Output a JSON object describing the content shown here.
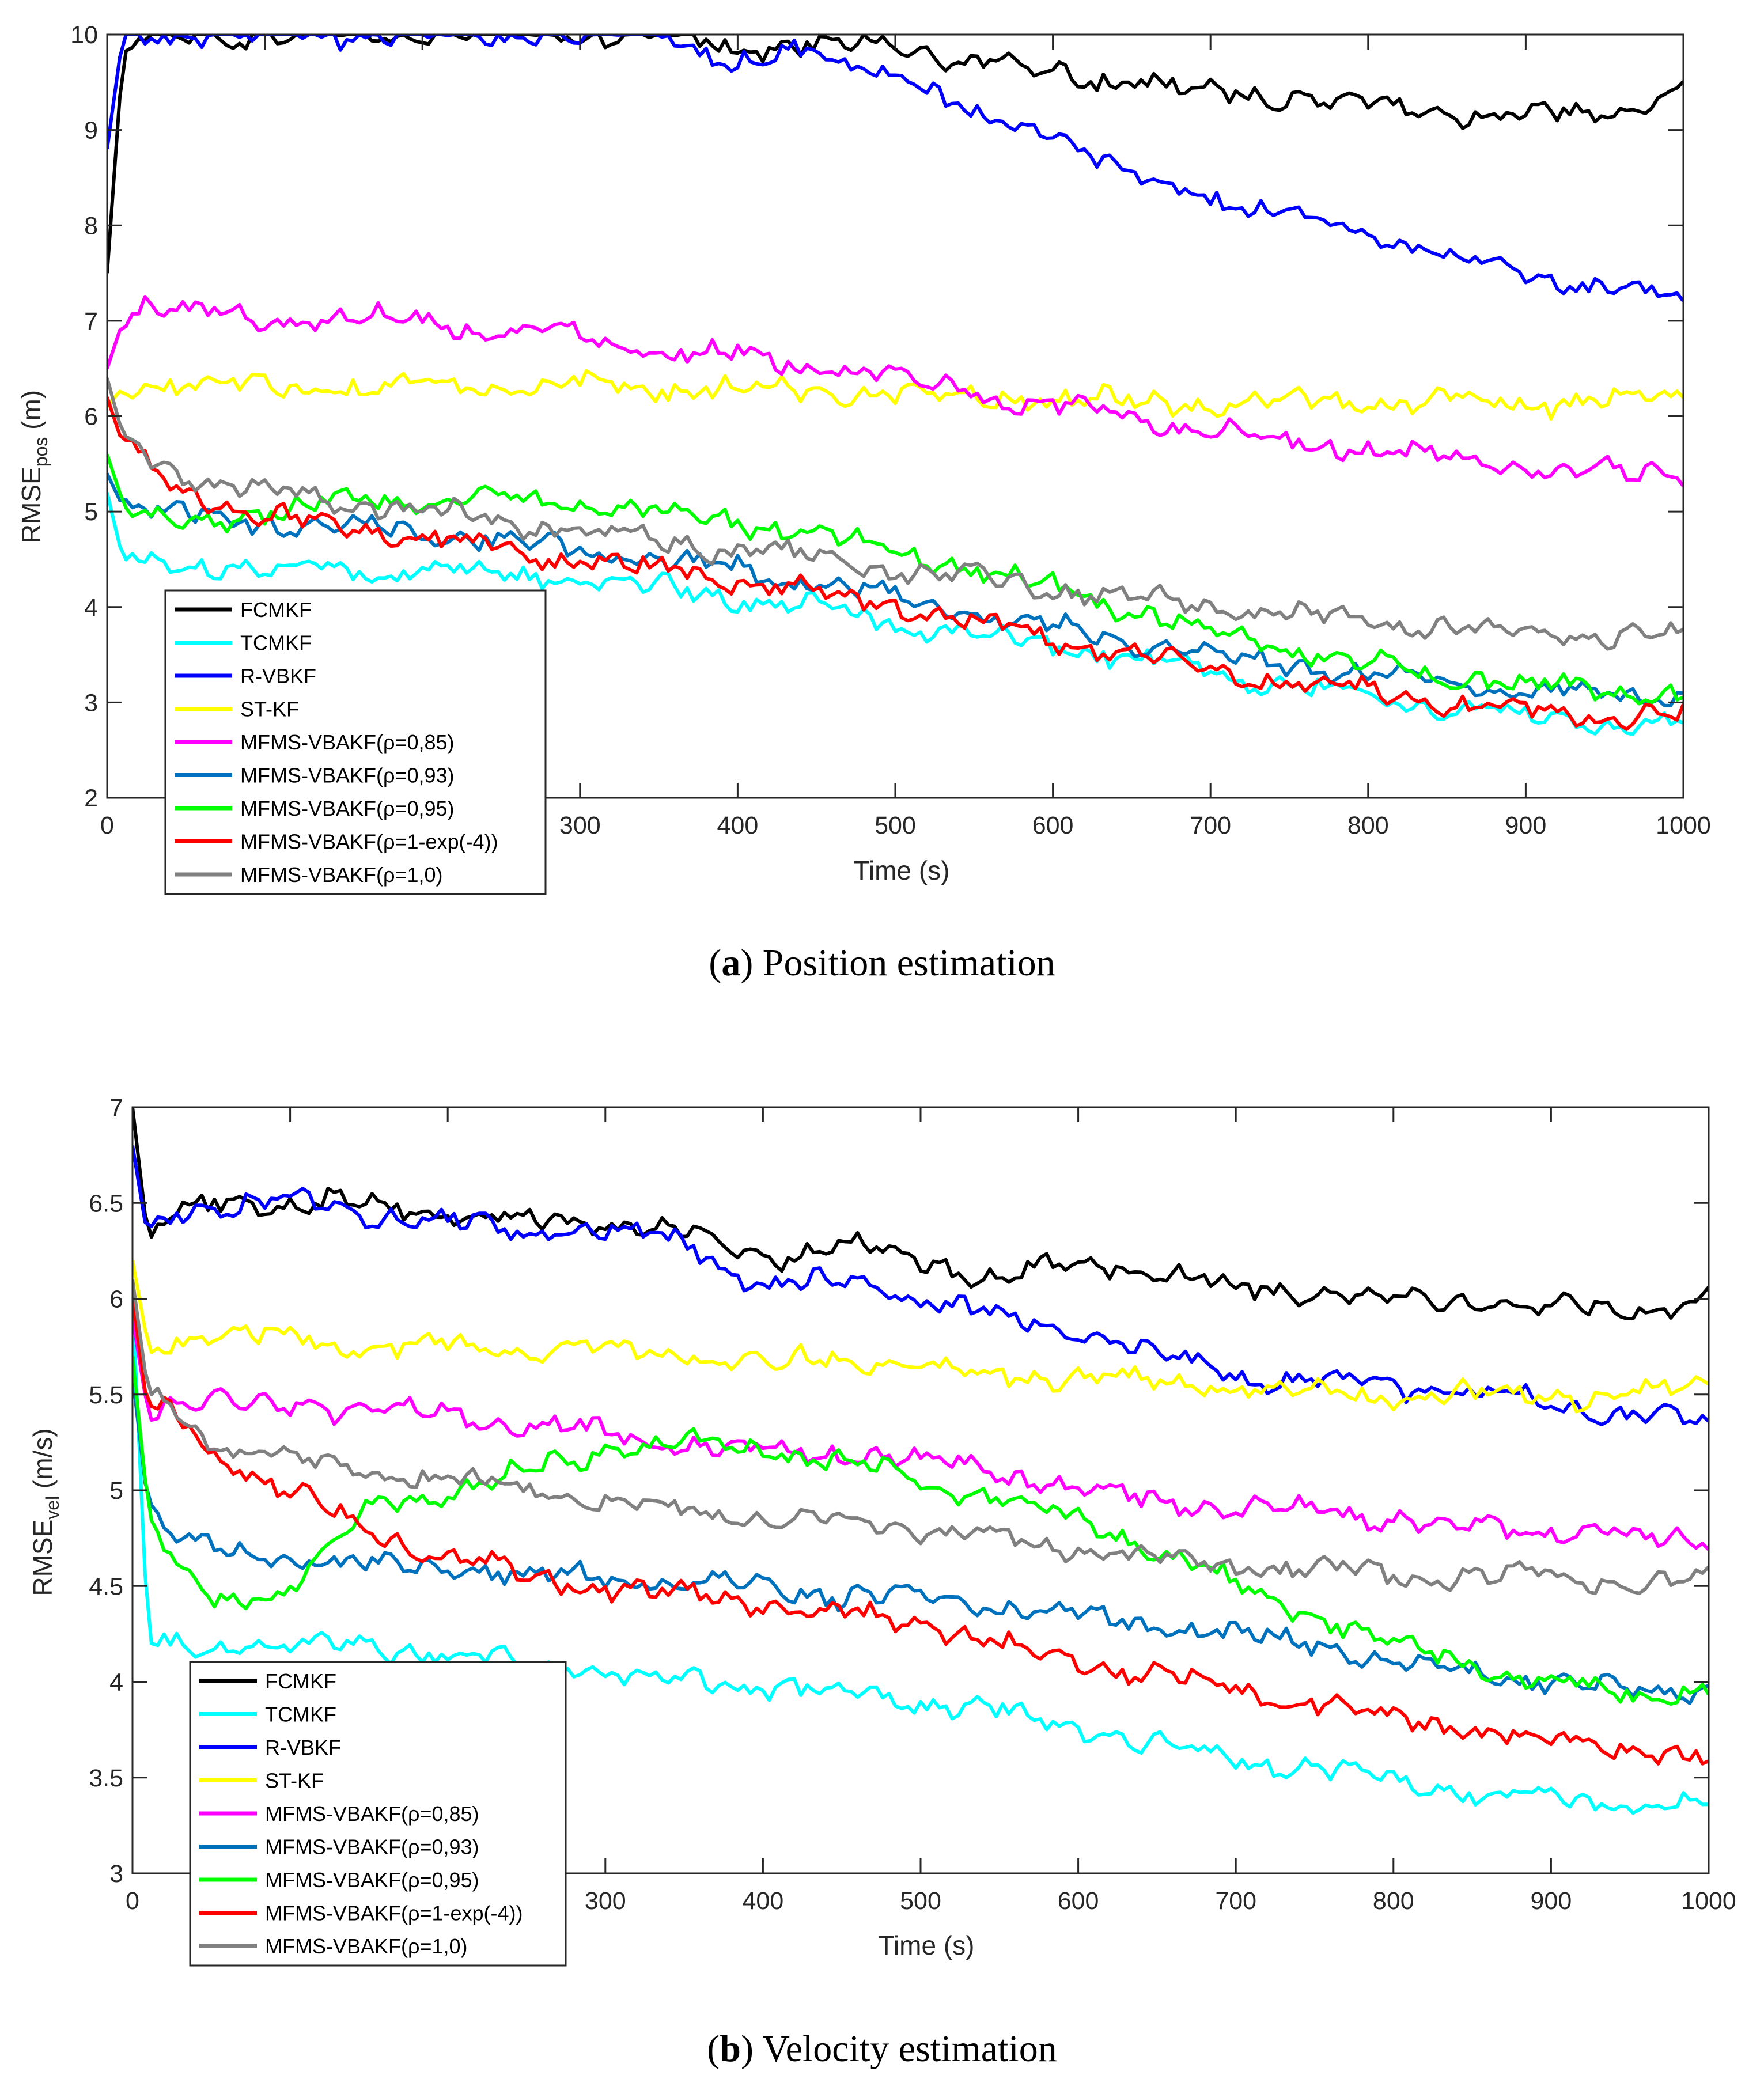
{
  "figure": {
    "panels": [
      {
        "caption_label": "a",
        "caption_text": "Position estimation",
        "ylabel_main": "RMSE",
        "ylabel_sub": "pos",
        "ylabel_unit": " (m)",
        "xlabel": "Time (s)"
      },
      {
        "caption_label": "b",
        "caption_text": "Velocity estimation",
        "ylabel_main": "RMSE",
        "ylabel_sub": "vel",
        "ylabel_unit": " (m/s)",
        "xlabel": "Time (s)"
      }
    ]
  },
  "chart_data": [
    {
      "type": "line",
      "title": "(a) Position estimation",
      "xlabel": "Time (s)",
      "ylabel": "RMSE_pos (m)",
      "xlim": [
        0,
        1000
      ],
      "ylim": [
        2,
        10
      ],
      "xticks": [
        "0",
        "100",
        "200",
        "300",
        "400",
        "500",
        "600",
        "700",
        "800",
        "900",
        "1000"
      ],
      "yticks": [
        "2",
        "3",
        "4",
        "5",
        "6",
        "7",
        "8",
        "9",
        "10"
      ],
      "x": [
        0,
        10,
        25,
        50,
        100,
        150,
        200,
        250,
        300,
        350,
        400,
        450,
        500,
        550,
        600,
        650,
        700,
        750,
        800,
        850,
        900,
        950,
        1000
      ],
      "legend_position": "bottom-left",
      "series": [
        {
          "name": "FCMKF",
          "color": "#000000",
          "values": [
            7.5,
            9.8,
            10.0,
            10.0,
            10.0,
            10.0,
            10.0,
            10.0,
            10.0,
            10.0,
            9.85,
            9.9,
            9.9,
            9.7,
            9.6,
            9.5,
            9.4,
            9.35,
            9.25,
            9.2,
            9.15,
            9.15,
            9.4
          ]
        },
        {
          "name": "TCMKF",
          "color": "#00ffff",
          "values": [
            5.2,
            4.5,
            4.45,
            4.45,
            4.4,
            4.4,
            4.38,
            4.35,
            4.3,
            4.2,
            4.1,
            3.98,
            3.85,
            3.7,
            3.58,
            3.45,
            3.3,
            3.18,
            3.05,
            2.95,
            2.85,
            2.8,
            2.78
          ]
        },
        {
          "name": "R-VBKF",
          "color": "#0000ff",
          "values": [
            8.8,
            10.0,
            10.0,
            10.0,
            10.0,
            10.0,
            10.0,
            10.0,
            10.0,
            10.0,
            9.7,
            9.8,
            9.6,
            9.1,
            9.0,
            8.5,
            8.3,
            8.1,
            7.9,
            7.7,
            7.45,
            7.35,
            7.2
          ]
        },
        {
          "name": "ST-KF",
          "color": "#ffff00",
          "values": [
            6.1,
            6.3,
            6.35,
            6.35,
            6.3,
            6.3,
            6.3,
            6.3,
            6.3,
            6.3,
            6.3,
            6.25,
            6.25,
            6.2,
            6.2,
            6.15,
            6.15,
            6.15,
            6.15,
            6.15,
            6.15,
            6.15,
            6.2
          ]
        },
        {
          "name": "MFMS-VBAKF(ρ=0,85)",
          "color": "#ff00ff",
          "values": [
            6.5,
            7.0,
            7.2,
            7.1,
            7.0,
            7.05,
            7.0,
            6.9,
            6.85,
            6.7,
            6.65,
            6.5,
            6.4,
            6.25,
            6.1,
            6.0,
            5.85,
            5.75,
            5.65,
            5.55,
            5.45,
            5.4,
            5.4
          ]
        },
        {
          "name": "MFMS-VBAKF(ρ=0,93)",
          "color": "#0072bd",
          "values": [
            5.4,
            5.05,
            5.0,
            4.95,
            4.9,
            4.85,
            4.8,
            4.7,
            4.6,
            4.5,
            4.4,
            4.25,
            4.1,
            3.95,
            3.8,
            3.65,
            3.5,
            3.4,
            3.3,
            3.2,
            3.12,
            3.08,
            3.05
          ]
        },
        {
          "name": "MFMS-VBAKF(ρ=0,95)",
          "color": "#00ff00",
          "values": [
            5.6,
            5.1,
            4.9,
            4.9,
            5.0,
            5.1,
            5.15,
            5.1,
            5.05,
            5.0,
            4.9,
            4.75,
            4.6,
            4.4,
            4.2,
            3.95,
            3.75,
            3.55,
            3.4,
            3.28,
            3.18,
            3.12,
            3.1
          ]
        },
        {
          "name": "MFMS-VBAKF(ρ=1-exp(-4))",
          "color": "#ff0000",
          "values": [
            6.2,
            5.7,
            5.5,
            5.2,
            4.95,
            4.85,
            4.75,
            4.6,
            4.5,
            4.4,
            4.3,
            4.15,
            4.0,
            3.85,
            3.65,
            3.5,
            3.35,
            3.2,
            3.1,
            3.0,
            2.92,
            2.88,
            2.87
          ]
        },
        {
          "name": "MFMS-VBAKF(ρ=1,0)",
          "color": "#808080",
          "values": [
            6.4,
            5.8,
            5.6,
            5.35,
            5.2,
            5.1,
            5.0,
            4.9,
            4.8,
            4.7,
            4.6,
            4.5,
            4.4,
            4.3,
            4.2,
            4.1,
            4.0,
            3.9,
            3.85,
            3.8,
            3.75,
            3.7,
            3.68
          ]
        }
      ]
    },
    {
      "type": "line",
      "title": "(b) Velocity estimation",
      "xlabel": "Time (s)",
      "ylabel": "RMSE_vel (m/s)",
      "xlim": [
        0,
        1000
      ],
      "ylim": [
        3,
        7
      ],
      "xticks": [
        "0",
        "100",
        "200",
        "300",
        "400",
        "500",
        "600",
        "700",
        "800",
        "900",
        "1000"
      ],
      "yticks": [
        "3",
        "3.5",
        "4",
        "4.5",
        "5",
        "5.5",
        "6",
        "6.5",
        "7"
      ],
      "x": [
        0,
        10,
        25,
        50,
        100,
        150,
        200,
        250,
        300,
        350,
        400,
        450,
        500,
        550,
        600,
        650,
        700,
        750,
        800,
        850,
        900,
        950,
        1000
      ],
      "legend_position": "bottom-left",
      "series": [
        {
          "name": "FCMKF",
          "color": "#000000",
          "values": [
            7.0,
            6.3,
            6.45,
            6.5,
            6.5,
            6.5,
            6.45,
            6.4,
            6.4,
            6.35,
            6.2,
            6.3,
            6.2,
            6.1,
            6.2,
            6.15,
            6.05,
            6.05,
            6.0,
            6.0,
            5.95,
            5.95,
            6.0
          ]
        },
        {
          "name": "TCMKF",
          "color": "#00ffff",
          "values": [
            6.0,
            4.2,
            4.18,
            4.2,
            4.2,
            4.18,
            4.15,
            4.1,
            4.05,
            4.0,
            3.98,
            3.95,
            3.9,
            3.85,
            3.75,
            3.68,
            3.6,
            3.55,
            3.48,
            3.43,
            3.38,
            3.35,
            3.35
          ]
        },
        {
          "name": "R-VBKF",
          "color": "#0000ff",
          "values": [
            6.8,
            6.3,
            6.45,
            6.5,
            6.5,
            6.45,
            6.4,
            6.35,
            6.35,
            6.3,
            6.05,
            6.1,
            6.0,
            5.9,
            5.85,
            5.7,
            5.6,
            5.55,
            5.55,
            5.5,
            5.45,
            5.4,
            5.35
          ]
        },
        {
          "name": "ST-KF",
          "color": "#ffff00",
          "values": [
            6.2,
            5.75,
            5.8,
            5.8,
            5.8,
            5.75,
            5.75,
            5.75,
            5.75,
            5.7,
            5.65,
            5.7,
            5.65,
            5.6,
            5.6,
            5.55,
            5.55,
            5.5,
            5.5,
            5.5,
            5.5,
            5.5,
            5.55
          ]
        },
        {
          "name": "MFMS-VBAKF(ρ=0,85)",
          "color": "#ff00ff",
          "values": [
            5.9,
            5.4,
            5.45,
            5.45,
            5.45,
            5.4,
            5.4,
            5.35,
            5.3,
            5.25,
            5.2,
            5.2,
            5.15,
            5.1,
            5.0,
            4.95,
            4.9,
            4.9,
            4.85,
            4.8,
            4.8,
            4.75,
            4.75
          ]
        },
        {
          "name": "MFMS-VBAKF(ρ=0,93)",
          "color": "#0072bd",
          "values": [
            5.6,
            4.9,
            4.75,
            4.7,
            4.65,
            4.6,
            4.6,
            4.55,
            4.55,
            4.5,
            4.5,
            4.45,
            4.45,
            4.4,
            4.35,
            4.3,
            4.25,
            4.2,
            4.1,
            4.05,
            4.0,
            3.95,
            3.95
          ]
        },
        {
          "name": "MFMS-VBAKF(ρ=0,95)",
          "color": "#00ff00",
          "values": [
            5.7,
            4.9,
            4.6,
            4.4,
            4.5,
            4.9,
            5.0,
            5.1,
            5.2,
            5.25,
            5.2,
            5.15,
            5.05,
            4.95,
            4.85,
            4.7,
            4.5,
            4.35,
            4.2,
            4.1,
            4.0,
            3.95,
            3.95
          ]
        },
        {
          "name": "MFMS-VBAKF(ρ=1-exp(-4))",
          "color": "#ff0000",
          "values": [
            6.0,
            5.4,
            5.4,
            5.2,
            5.0,
            4.8,
            4.65,
            4.55,
            4.5,
            4.45,
            4.4,
            4.35,
            4.3,
            4.2,
            4.1,
            4.05,
            3.95,
            3.9,
            3.8,
            3.75,
            3.7,
            3.65,
            3.6
          ]
        },
        {
          "name": "MFMS-VBAKF(ρ=1,0)",
          "color": "#808080",
          "values": [
            6.1,
            5.5,
            5.45,
            5.25,
            5.15,
            5.1,
            5.05,
            5.0,
            4.95,
            4.9,
            4.85,
            4.85,
            4.8,
            4.75,
            4.7,
            4.65,
            4.6,
            4.6,
            4.55,
            4.55,
            4.55,
            4.5,
            4.55
          ]
        }
      ]
    }
  ]
}
